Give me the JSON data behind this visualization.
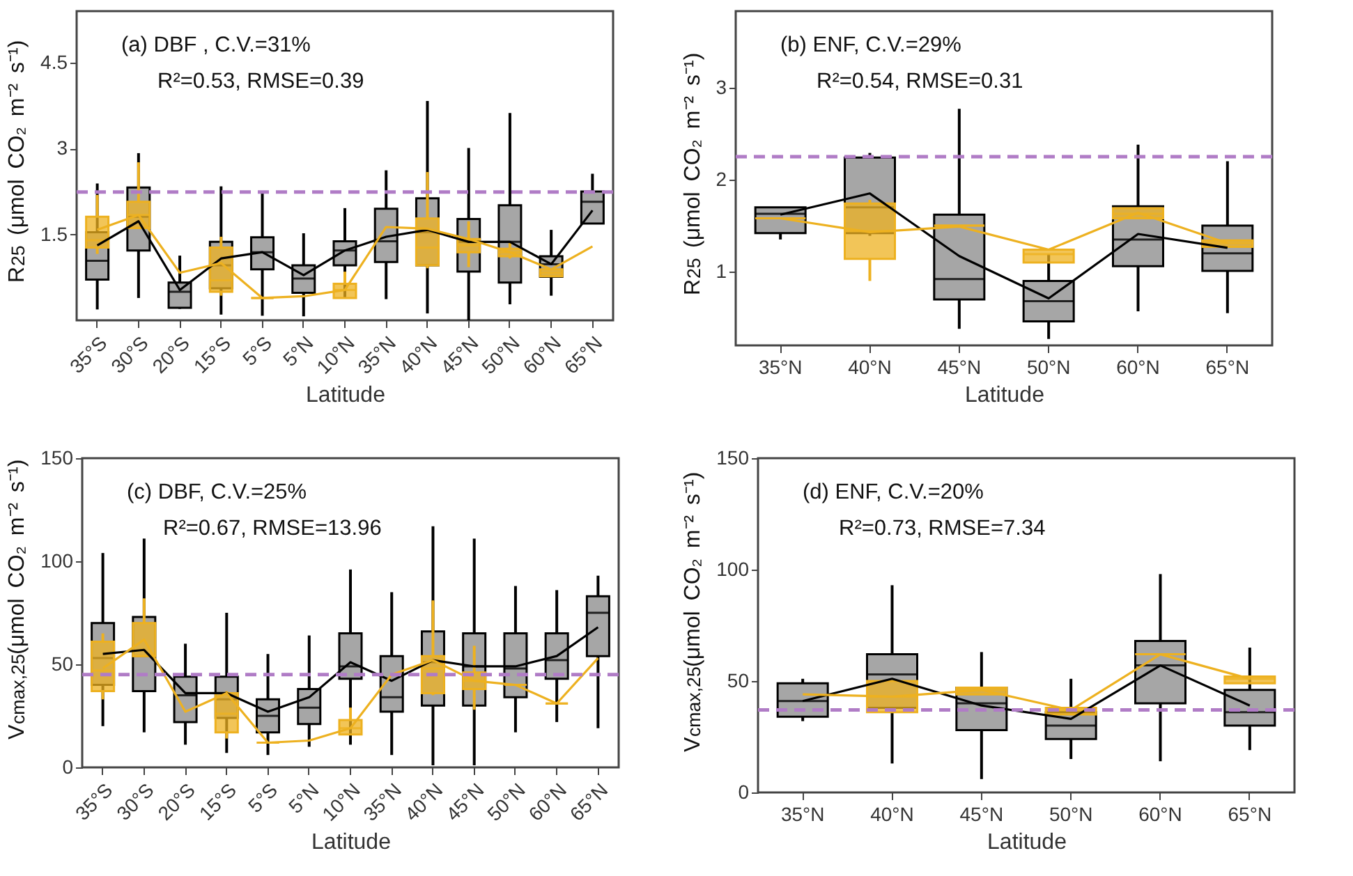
{
  "chart_data": [
    {
      "type": "box",
      "xlabel": "Latitude",
      "ylabel": "R$_{25}$ (μmol CO₂ m⁻² s⁻¹)",
      "annotations": [
        "(a) DBF , C.V.=31%",
        "R²=0.53, RMSE=0.39"
      ],
      "categories": [
        "35°S",
        "30°S",
        "20°S",
        "15°S",
        "5°S",
        "5°N",
        "10°N",
        "35°N",
        "40°N",
        "45°N",
        "50°N",
        "60°N",
        "65°N"
      ],
      "ylim": [
        0,
        5.4
      ],
      "yticks": [
        1.5,
        3,
        4.5
      ],
      "ref_lines": [
        {
          "axis": "y",
          "value": 2.24,
          "color": "#b07cc6",
          "line_style": "dashed"
        }
      ],
      "series": [
        {
          "type": "box",
          "color": "#a6a6a6",
          "boxes": [
            {
              "low": 0.19,
              "q1": 0.71,
              "median": 1.04,
              "q3": 1.54,
              "high": 2.39
            },
            {
              "low": 0.39,
              "q1": 1.22,
              "median": 1.81,
              "q3": 2.32,
              "high": 2.92
            },
            {
              "low": 0.2,
              "q1": 0.22,
              "median": 0.5,
              "q3": 0.66,
              "high": 1.13
            },
            {
              "low": 0.1,
              "q1": 0.56,
              "median": 0.96,
              "q3": 1.37,
              "high": 2.34
            },
            {
              "low": 0.08,
              "q1": 0.89,
              "median": 1.19,
              "q3": 1.45,
              "high": 2.26
            },
            {
              "low": 0.07,
              "q1": 0.48,
              "median": 0.73,
              "q3": 0.96,
              "high": 1.52
            },
            {
              "low": 0.39,
              "q1": 0.96,
              "median": 1.22,
              "q3": 1.38,
              "high": 1.96
            },
            {
              "low": 0.37,
              "q1": 1.02,
              "median": 1.38,
              "q3": 1.95,
              "high": 2.62
            },
            {
              "low": 0.12,
              "q1": 0.96,
              "median": 1.54,
              "q3": 2.13,
              "high": 3.83
            },
            {
              "low": 0.0,
              "q1": 0.85,
              "median": 1.37,
              "q3": 1.77,
              "high": 3.01
            },
            {
              "low": 0.28,
              "q1": 0.66,
              "median": 1.37,
              "q3": 2.01,
              "high": 3.62
            },
            {
              "low": 0.43,
              "q1": 0.76,
              "median": 0.98,
              "q3": 1.12,
              "high": 1.58
            },
            {
              "q1": 1.69,
              "median": 2.07,
              "q3": 2.25,
              "high": 2.56
            }
          ]
        },
        {
          "type": "box",
          "color": "#edb120",
          "boxes": [
            {
              "low": 1.16,
              "q1": 1.27,
              "median": 1.4,
              "q3": 1.81,
              "high": 2.19
            },
            {
              "q1": 1.61,
              "median": 1.84,
              "q3": 2.07,
              "high": 2.76
            },
            null,
            {
              "low": 0.43,
              "q1": 0.5,
              "median": 0.7,
              "q3": 1.27,
              "high": 1.46
            },
            {
              "q1": 0.39,
              "median": 0.39,
              "q3": 0.39
            },
            null,
            {
              "q1": 0.39,
              "median": 0.53,
              "q3": 0.64,
              "high": 0.85
            },
            null,
            {
              "low": 0.91,
              "q1": 0.96,
              "median": 1.27,
              "q3": 1.78,
              "high": 2.59
            },
            {
              "low": 0.93,
              "q1": 1.19,
              "median": 1.31,
              "q3": 1.42,
              "high": 1.73
            },
            {
              "low": 1.08,
              "q1": 1.12,
              "median": 1.19,
              "q3": 1.25,
              "high": 1.35
            },
            {
              "q1": 0.77,
              "median": 0.83,
              "q3": 0.89
            },
            null
          ]
        },
        {
          "type": "line",
          "color": "#000000",
          "values": [
            1.31,
            1.73,
            0.53,
            1.08,
            1.19,
            0.79,
            1.22,
            1.46,
            1.58,
            1.37,
            1.37,
            0.98,
            1.92
          ]
        },
        {
          "type": "line",
          "color": "#edb120",
          "values": [
            1.58,
            1.84,
            0.83,
            1.0,
            0.39,
            0.42,
            0.53,
            1.63,
            1.6,
            1.42,
            1.19,
            0.89,
            1.29
          ]
        }
      ]
    },
    {
      "type": "box",
      "xlabel": "Latitude",
      "ylabel": "R$_{25}$ (μmol CO₂ m⁻² s⁻¹)",
      "annotations": [
        "(b) ENF, C.V.=29%",
        "R²=0.54, RMSE=0.31"
      ],
      "categories": [
        "35°N",
        "40°N",
        "45°N",
        "50°N",
        "60°N",
        "65°N"
      ],
      "ylim": [
        0.2,
        3.83
      ],
      "yticks": [
        1,
        2,
        3
      ],
      "ref_lines": [
        {
          "axis": "y",
          "value": 2.25,
          "color": "#b07cc6",
          "line_style": "dashed"
        }
      ],
      "series": [
        {
          "type": "box",
          "color": "#a6a6a6",
          "boxes": [
            {
              "low": 1.35,
              "q1": 1.42,
              "median": 1.63,
              "q3": 1.7
            },
            {
              "low": 1.39,
              "q1": 1.42,
              "median": 1.7,
              "q3": 2.24,
              "high": 2.29
            },
            {
              "low": 0.38,
              "q1": 0.7,
              "median": 0.92,
              "q3": 1.62,
              "high": 2.77
            },
            {
              "low": 0.27,
              "q1": 0.46,
              "median": 0.68,
              "q3": 0.9,
              "high": 1.19
            },
            {
              "low": 0.57,
              "q1": 1.06,
              "median": 1.35,
              "q3": 1.71,
              "high": 2.38
            },
            {
              "low": 0.55,
              "q1": 1.01,
              "median": 1.2,
              "q3": 1.5,
              "high": 2.2
            }
          ]
        },
        {
          "type": "box",
          "color": "#edb120",
          "boxes": [
            {
              "q1": 1.58,
              "median": 1.58,
              "q3": 1.58
            },
            {
              "low": 0.9,
              "q1": 1.14,
              "median": 1.44,
              "q3": 1.74,
              "high": 1.78
            },
            {
              "q1": 1.5,
              "median": 1.5,
              "q3": 1.5
            },
            {
              "q1": 1.1,
              "median": 1.19,
              "q3": 1.24
            },
            {
              "q1": 1.58,
              "median": 1.63,
              "q3": 1.69
            },
            {
              "q1": 1.27,
              "median": 1.31,
              "q3": 1.34
            }
          ]
        },
        {
          "type": "line",
          "color": "#000000",
          "values": [
            1.62,
            1.85,
            1.17,
            0.71,
            1.41,
            1.26
          ]
        },
        {
          "type": "line",
          "color": "#edb120",
          "values": [
            1.58,
            1.43,
            1.49,
            1.24,
            1.64,
            1.31
          ]
        }
      ]
    },
    {
      "type": "box",
      "xlabel": "Latitude",
      "ylabel": "V$_{cmax,25}$(μmol CO₂ m⁻² s⁻¹)",
      "annotations": [
        "(c) DBF, C.V.=25%",
        "R²=0.67, RMSE=13.96"
      ],
      "categories": [
        "35°S",
        "30°S",
        "20°S",
        "15°S",
        "5°S",
        "5°N",
        "10°N",
        "35°N",
        "40°N",
        "45°N",
        "50°N",
        "60°N",
        "65°N"
      ],
      "ylim": [
        0,
        150
      ],
      "yticks": [
        0,
        50,
        100,
        150
      ],
      "ref_lines": [
        {
          "axis": "y",
          "value": 45,
          "color": "#b07cc6",
          "line_style": "dashed"
        }
      ],
      "series": [
        {
          "type": "box",
          "color": "#a6a6a6",
          "boxes": [
            {
              "low": 20,
              "q1": 40,
              "median": 53,
              "q3": 70,
              "high": 104
            },
            {
              "low": 17,
              "q1": 37,
              "median": 54,
              "q3": 73,
              "high": 111
            },
            {
              "low": 11,
              "q1": 22,
              "median": 35,
              "q3": 44,
              "high": 60
            },
            {
              "low": 7,
              "q1": 24,
              "median": 33,
              "q3": 44,
              "high": 75
            },
            {
              "low": 6,
              "q1": 17,
              "median": 25,
              "q3": 33,
              "high": 55
            },
            {
              "low": 10,
              "q1": 21,
              "median": 29,
              "q3": 38,
              "high": 64
            },
            {
              "low": 11,
              "q1": 43,
              "median": 49,
              "q3": 65,
              "high": 96
            },
            {
              "low": 6,
              "q1": 27,
              "median": 34,
              "q3": 54,
              "high": 85
            },
            {
              "low": 1,
              "q1": 30,
              "median": 51,
              "q3": 66,
              "high": 117
            },
            {
              "low": 1,
              "q1": 30,
              "median": 49,
              "q3": 65,
              "high": 111
            },
            {
              "low": 17,
              "q1": 34,
              "median": 48,
              "q3": 65,
              "high": 88
            },
            {
              "low": 22,
              "q1": 43,
              "median": 52,
              "q3": 65,
              "high": 86
            },
            {
              "low": 19,
              "q1": 54,
              "median": 75,
              "q3": 83,
              "high": 93
            }
          ]
        },
        {
          "type": "box",
          "color": "#edb120",
          "boxes": [
            {
              "low": 33,
              "q1": 37,
              "median": 47,
              "q3": 61,
              "high": 65
            },
            {
              "q1": 54,
              "median": 54,
              "q3": 70,
              "high": 82
            },
            null,
            {
              "low": 14,
              "q1": 17,
              "median": 26,
              "q3": 36,
              "high": 37
            },
            {
              "q1": 12,
              "median": 12,
              "q3": 12
            },
            null,
            {
              "q1": 16,
              "median": 19,
              "q3": 23,
              "high": 29
            },
            null,
            {
              "low": 35,
              "q1": 36,
              "median": 48,
              "q3": 54,
              "high": 81
            },
            {
              "low": 28,
              "q1": 38,
              "median": 42,
              "q3": 46,
              "high": 59
            },
            {
              "q1": 40,
              "median": 40,
              "q3": 40
            },
            {
              "q1": 31,
              "median": 31,
              "q3": 31
            },
            null
          ]
        },
        {
          "type": "line",
          "color": "#000000",
          "values": [
            55,
            57,
            36,
            36,
            27,
            34,
            51,
            42,
            52,
            49,
            49,
            54,
            68
          ]
        },
        {
          "type": "line",
          "color": "#edb120",
          "values": [
            48,
            62,
            27,
            36,
            12,
            13,
            19,
            45,
            52,
            42,
            40,
            31,
            53
          ]
        }
      ]
    },
    {
      "type": "box",
      "xlabel": "Latitude",
      "ylabel": "V$_{cmax,25}$(μmol CO₂ m⁻² s⁻¹)",
      "annotations": [
        "(d) ENF, C.V.=20%",
        "R²=0.73, RMSE=7.34"
      ],
      "categories": [
        "35°N",
        "40°N",
        "45°N",
        "50°N",
        "60°N",
        "65°N"
      ],
      "ylim": [
        0,
        150
      ],
      "yticks": [
        0,
        50,
        100,
        150
      ],
      "ref_lines": [
        {
          "axis": "y",
          "value": 37,
          "color": "#b07cc6",
          "line_style": "dashed"
        }
      ],
      "series": [
        {
          "type": "box",
          "color": "#a6a6a6",
          "boxes": [
            {
              "low": 32,
              "q1": 34,
              "median": 41,
              "q3": 49,
              "high": 51
            },
            {
              "low": 13,
              "q1": 38,
              "median": 53,
              "q3": 62,
              "high": 93
            },
            {
              "low": 6,
              "q1": 28,
              "median": 40,
              "q3": 47,
              "high": 63
            },
            {
              "low": 15,
              "q1": 24,
              "median": 30,
              "q3": 36,
              "high": 51
            },
            {
              "low": 14,
              "q1": 40,
              "median": 57,
              "q3": 68,
              "high": 98
            },
            {
              "low": 19,
              "q1": 30,
              "median": 36,
              "q3": 46,
              "high": 65
            }
          ]
        },
        {
          "type": "box",
          "color": "#edb120",
          "boxes": [
            null,
            {
              "q1": 36,
              "median": 43,
              "q3": 50
            },
            {
              "q1": 44,
              "median": 46,
              "q3": 47
            },
            {
              "q1": 35,
              "median": 37,
              "q3": 38
            },
            {
              "q1": 62,
              "median": 62,
              "q3": 62
            },
            {
              "q1": 49,
              "median": 51,
              "q3": 52
            }
          ]
        },
        {
          "type": "line",
          "color": "#000000",
          "values": [
            41,
            51,
            39,
            33,
            57,
            39
          ]
        },
        {
          "type": "line",
          "color": "#edb120",
          "values": [
            44,
            43,
            46,
            37,
            62,
            51
          ]
        }
      ]
    }
  ]
}
